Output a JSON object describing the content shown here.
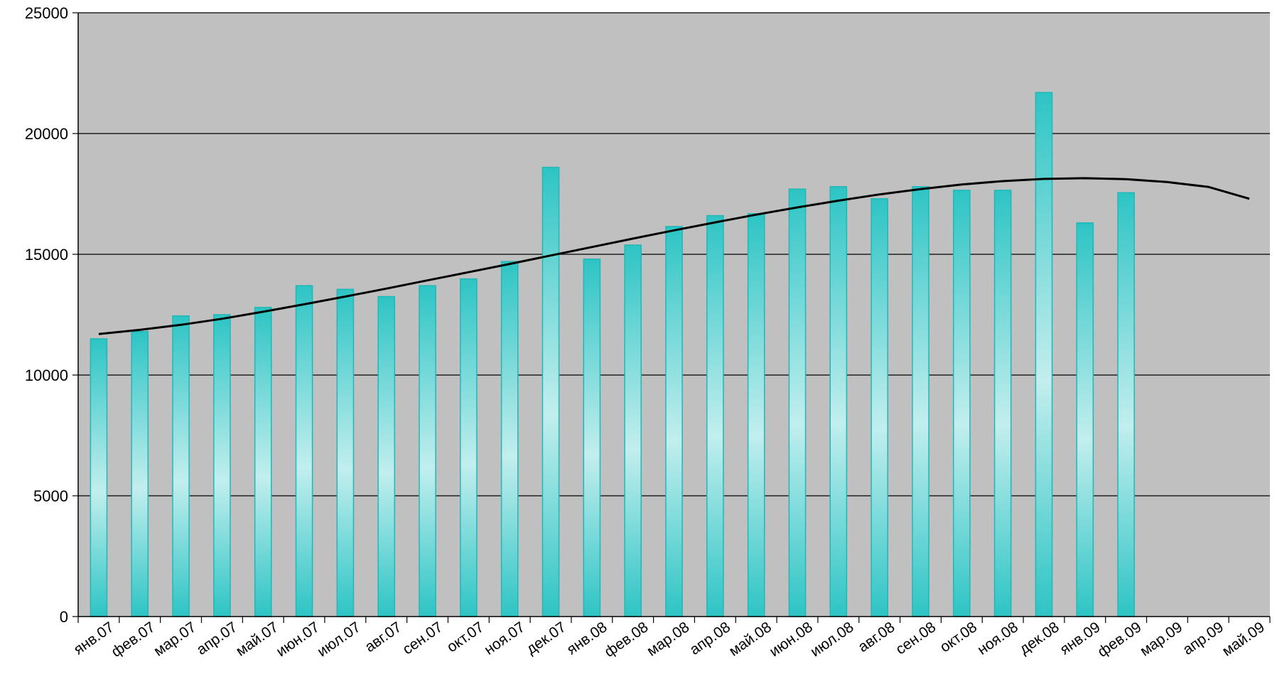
{
  "chart_data": {
    "type": "bar",
    "categories": [
      "янв.07",
      "фев.07",
      "мар.07",
      "апр.07",
      "май.07",
      "июн.07",
      "июл.07",
      "авг.07",
      "сен.07",
      "окт.07",
      "ноя.07",
      "дек.07",
      "янв.08",
      "фев.08",
      "мар.08",
      "апр.08",
      "май.08",
      "июн.08",
      "июл.08",
      "авг.08",
      "сен.08",
      "окт.08",
      "ноя.08",
      "дек.08",
      "янв.09",
      "фев.09",
      "мар.09",
      "апр.09",
      "май.09"
    ],
    "values": [
      11500,
      11800,
      12450,
      12500,
      12800,
      13700,
      13550,
      13250,
      13700,
      13980,
      14700,
      18600,
      14800,
      15380,
      16150,
      16600,
      16680,
      17700,
      17800,
      17300,
      17800,
      17650,
      17650,
      21700,
      16300,
      17550,
      null,
      null,
      null
    ],
    "trend": [
      11700,
      11870,
      12080,
      12330,
      12620,
      12930,
      13250,
      13580,
      13920,
      14260,
      14600,
      14950,
      15300,
      15650,
      15990,
      16320,
      16640,
      16940,
      17220,
      17480,
      17700,
      17890,
      18030,
      18120,
      18150,
      18110,
      17990,
      17790,
      17300
    ],
    "ylim": [
      0,
      25000
    ],
    "yticks": [
      0,
      5000,
      10000,
      15000,
      20000,
      25000
    ],
    "grid": true,
    "legend": "none",
    "title": "",
    "xlabel": "",
    "ylabel": "",
    "colors": {
      "plot_background": "#c0c0c0",
      "bar_edge": "#1fb8b8",
      "bar_light": "#c2eeee",
      "bar_dark": "#2ec4c4",
      "trend_line": "#000000",
      "gridline": "#000000"
    }
  }
}
